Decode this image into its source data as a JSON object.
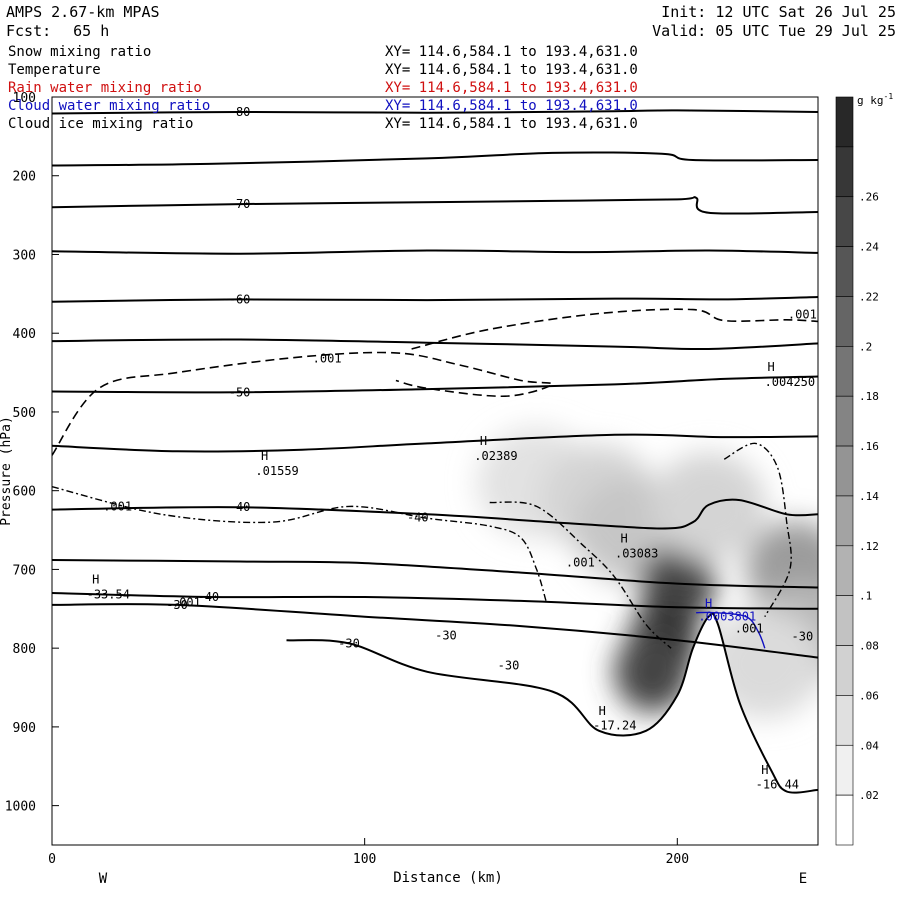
{
  "header": {
    "model": "AMPS 2.67-km MPAS",
    "fcst_label": "Fcst:",
    "fcst_value": "65 h",
    "init": "Init: 12 UTC Sat 26 Jul 25",
    "valid": "Valid: 05 UTC Tue 29 Jul 25"
  },
  "fields": [
    {
      "name": "Snow mixing ratio",
      "xy": "XY= 114.6,584.1 to 193.4,631.0",
      "color": "#000000"
    },
    {
      "name": "Temperature",
      "xy": "XY= 114.6,584.1 to 193.4,631.0",
      "color": "#000000"
    },
    {
      "name": "Rain water mixing ratio",
      "xy": "XY= 114.6,584.1 to 193.4,631.0",
      "color": "#d01010"
    },
    {
      "name": "Cloud water mixing ratio",
      "xy": "XY= 114.6,584.1 to 193.4,631.0",
      "color": "#1010c0"
    },
    {
      "name": "Cloud ice mixing ratio",
      "xy": "XY= 114.6,584.1 to 193.4,631.0",
      "color": "#000000"
    }
  ],
  "chart_data": {
    "type": "heatmap",
    "xlabel": "Distance (km)",
    "ylabel": "Pressure (hPa)",
    "xlim": [
      0,
      245
    ],
    "ylim": [
      1050,
      100
    ],
    "x_ticks": [
      0,
      100,
      200
    ],
    "y_ticks": [
      100,
      200,
      300,
      400,
      500,
      600,
      700,
      800,
      900,
      1000
    ],
    "x_end_labels": {
      "left": "W",
      "right": "E"
    },
    "colorbar": {
      "unit_label": "g kg",
      "unit_exp": "-1",
      "ticks": [
        ".02",
        ".04",
        ".06",
        ".08",
        ".1",
        ".12",
        ".14",
        ".16",
        ".18",
        ".2",
        ".22",
        ".24",
        ".26"
      ],
      "tick_values": [
        0.02,
        0.04,
        0.06,
        0.08,
        0.1,
        0.12,
        0.14,
        0.16,
        0.18,
        0.2,
        0.22,
        0.24,
        0.26
      ],
      "max": 0.3
    },
    "snow_field": [
      {
        "x": 155,
        "p": 590,
        "v": 0.04
      },
      {
        "x": 175,
        "p": 610,
        "v": 0.06
      },
      {
        "x": 185,
        "p": 650,
        "v": 0.08
      },
      {
        "x": 200,
        "p": 720,
        "v": 0.26
      },
      {
        "x": 196,
        "p": 790,
        "v": 0.28
      },
      {
        "x": 192,
        "p": 830,
        "v": 0.26
      },
      {
        "x": 210,
        "p": 620,
        "v": 0.06
      },
      {
        "x": 238,
        "p": 700,
        "v": 0.14
      },
      {
        "x": 240,
        "p": 780,
        "v": 0.1
      },
      {
        "x": 228,
        "p": 820,
        "v": 0.05
      }
    ],
    "temperature_contours": [
      {
        "label": "-80",
        "pts": [
          [
            0,
            121
          ],
          [
            60,
            119
          ],
          [
            120,
            120
          ],
          [
            180,
            118
          ],
          [
            200,
            117
          ],
          [
            245,
            119
          ]
        ]
      },
      {
        "label": "",
        "pts": [
          [
            0,
            187
          ],
          [
            50,
            185
          ],
          [
            120,
            178
          ],
          [
            160,
            171
          ],
          [
            195,
            172
          ],
          [
            205,
            180
          ],
          [
            245,
            180
          ]
        ]
      },
      {
        "label": "-70",
        "pts": [
          [
            0,
            240
          ],
          [
            60,
            236
          ],
          [
            110,
            234
          ],
          [
            160,
            232
          ],
          [
            200,
            230
          ],
          [
            206,
            228
          ],
          [
            210,
            247
          ],
          [
            245,
            246
          ]
        ]
      },
      {
        "label": "",
        "pts": [
          [
            0,
            296
          ],
          [
            60,
            299
          ],
          [
            120,
            295
          ],
          [
            170,
            297
          ],
          [
            210,
            295
          ],
          [
            245,
            298
          ]
        ]
      },
      {
        "label": "-60",
        "pts": [
          [
            0,
            360
          ],
          [
            60,
            357
          ],
          [
            120,
            358
          ],
          [
            180,
            356
          ],
          [
            215,
            357
          ],
          [
            245,
            354
          ]
        ]
      },
      {
        "label": "",
        "pts": [
          [
            0,
            410
          ],
          [
            60,
            408
          ],
          [
            120,
            412
          ],
          [
            180,
            417
          ],
          [
            210,
            420
          ],
          [
            245,
            413
          ]
        ]
      },
      {
        "label": "-50",
        "pts": [
          [
            0,
            474
          ],
          [
            60,
            475
          ],
          [
            120,
            471
          ],
          [
            180,
            465
          ],
          [
            215,
            458
          ],
          [
            245,
            455
          ]
        ]
      },
      {
        "label": "",
        "pts": [
          [
            0,
            543
          ],
          [
            40,
            550
          ],
          [
            80,
            548
          ],
          [
            120,
            540
          ],
          [
            180,
            529
          ],
          [
            215,
            532
          ],
          [
            245,
            531
          ]
        ]
      },
      {
        "label": "-40",
        "pts": [
          [
            0,
            624
          ],
          [
            60,
            621
          ],
          [
            120,
            630
          ],
          [
            160,
            640
          ],
          [
            195,
            648
          ],
          [
            205,
            640
          ],
          [
            210,
            618
          ],
          [
            220,
            612
          ],
          [
            235,
            630
          ],
          [
            245,
            630
          ]
        ]
      },
      {
        "label": "",
        "pts": [
          [
            0,
            688
          ],
          [
            60,
            690
          ],
          [
            100,
            692
          ],
          [
            150,
            704
          ],
          [
            200,
            718
          ],
          [
            245,
            723
          ]
        ]
      },
      {
        "label": "-40",
        "pts": [
          [
            0,
            730
          ],
          [
            50,
            735
          ],
          [
            100,
            735
          ],
          [
            150,
            740
          ],
          [
            200,
            748
          ],
          [
            245,
            750
          ]
        ]
      },
      {
        "label": "-30",
        "pts": [
          [
            0,
            745
          ],
          [
            40,
            745
          ],
          [
            100,
            760
          ],
          [
            150,
            772
          ],
          [
            200,
            790
          ],
          [
            245,
            812
          ]
        ]
      },
      {
        "label": "-30",
        "pts": [
          [
            75,
            790
          ],
          [
            95,
            794
          ],
          [
            120,
            830
          ],
          [
            160,
            855
          ],
          [
            175,
            905
          ],
          [
            190,
            905
          ],
          [
            200,
            860
          ],
          [
            205,
            800
          ],
          [
            210,
            760
          ],
          [
            213,
            770
          ],
          [
            220,
            870
          ],
          [
            230,
            955
          ],
          [
            235,
            982
          ],
          [
            245,
            980
          ]
        ]
      }
    ],
    "ice_contours": [
      {
        "label": ".001",
        "pts": [
          [
            0,
            555
          ],
          [
            15,
            470
          ],
          [
            40,
            450
          ],
          [
            80,
            430
          ],
          [
            110,
            425
          ],
          [
            130,
            440
          ],
          [
            150,
            460
          ],
          [
            160,
            465
          ],
          [
            145,
            480
          ],
          [
            120,
            470
          ],
          [
            110,
            460
          ]
        ]
      },
      {
        "label": "",
        "pts": [
          [
            115,
            420
          ],
          [
            140,
            395
          ],
          [
            175,
            375
          ],
          [
            205,
            370
          ],
          [
            215,
            384
          ],
          [
            235,
            383
          ],
          [
            245,
            385
          ]
        ]
      }
    ],
    "rain_contours": [
      {
        "label": ".001",
        "pts": [
          [
            0,
            595
          ],
          [
            35,
            630
          ],
          [
            70,
            640
          ],
          [
            95,
            620
          ],
          [
            120,
            635
          ],
          [
            140,
            645
          ],
          [
            150,
            660
          ],
          [
            155,
            700
          ],
          [
            158,
            740
          ]
        ]
      },
      {
        "label": "",
        "pts": [
          [
            140,
            615
          ],
          [
            155,
            620
          ],
          [
            170,
            670
          ],
          [
            180,
            710
          ],
          [
            190,
            770
          ],
          [
            198,
            800
          ]
        ]
      },
      {
        "label": "",
        "pts": [
          [
            215,
            560
          ],
          [
            225,
            540
          ],
          [
            232,
            570
          ],
          [
            235,
            640
          ],
          [
            236,
            700
          ],
          [
            228,
            760
          ]
        ]
      }
    ],
    "cloud_water_contour": {
      "label": ".001",
      "pts": [
        [
          206,
          755
        ],
        [
          212,
          755
        ],
        [
          222,
          760
        ],
        [
          226,
          780
        ],
        [
          228,
          800
        ]
      ]
    },
    "annotations": [
      {
        "text": "H",
        "x": 14,
        "p": 713,
        "color": "#000"
      },
      {
        "text": "-33.54",
        "x": 18,
        "p": 732,
        "color": "#000"
      },
      {
        "text": "H",
        "x": 68,
        "p": 556,
        "color": "#000"
      },
      {
        "text": ".01559",
        "x": 72,
        "p": 575,
        "color": "#000"
      },
      {
        "text": "H",
        "x": 138,
        "p": 537,
        "color": "#000"
      },
      {
        "text": ".02389",
        "x": 142,
        "p": 556,
        "color": "#000"
      },
      {
        "text": "H",
        "x": 183,
        "p": 661,
        "color": "#000"
      },
      {
        "text": ".03083",
        "x": 187,
        "p": 680,
        "color": "#000"
      },
      {
        "text": "H",
        "x": 230,
        "p": 443,
        "color": "#000"
      },
      {
        "text": ".004250",
        "x": 236,
        "p": 462,
        "color": "#000"
      },
      {
        "text": "H",
        "x": 210,
        "p": 743,
        "color": "#1010c0"
      },
      {
        "text": ".0003801",
        "x": 216,
        "p": 760,
        "color": "#1010c0"
      },
      {
        "text": ".001",
        "x": 223,
        "p": 775,
        "color": "#000"
      },
      {
        "text": "H",
        "x": 176,
        "p": 880,
        "color": "#000"
      },
      {
        "text": "-17.24",
        "x": 180,
        "p": 898,
        "color": "#000"
      },
      {
        "text": "H",
        "x": 228,
        "p": 955,
        "color": "#000"
      },
      {
        "text": "-16.44",
        "x": 232,
        "p": 973,
        "color": "#000"
      },
      {
        "text": ".001",
        "x": 88,
        "p": 432,
        "color": "#000"
      },
      {
        "text": ".001",
        "x": 240,
        "p": 376,
        "color": "#000"
      },
      {
        "text": ".001",
        "x": 21,
        "p": 620,
        "color": "#000"
      },
      {
        "text": ".001",
        "x": 43,
        "p": 742,
        "color": "#000"
      },
      {
        "text": ".001",
        "x": 169,
        "p": 691,
        "color": "#000"
      },
      {
        "text": "-30",
        "x": 126,
        "p": 784,
        "color": "#000"
      },
      {
        "text": "-30",
        "x": 146,
        "p": 822,
        "color": "#000"
      },
      {
        "text": "-30",
        "x": 240,
        "p": 785,
        "color": "#000"
      },
      {
        "text": "-40",
        "x": 117,
        "p": 634,
        "color": "#000"
      }
    ]
  }
}
